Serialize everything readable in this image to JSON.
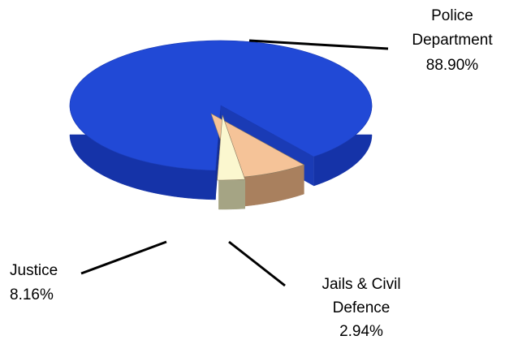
{
  "chart_data": {
    "type": "pie",
    "style": "3d-exploded",
    "title": "",
    "slices": [
      {
        "label_lines": [
          "Police",
          "Department"
        ],
        "value_label": "88.90%",
        "value": 88.9,
        "color": "#2149d6",
        "side_color": "#1533a8"
      },
      {
        "label_lines": [
          "Justice"
        ],
        "value_label": "8.16%",
        "value": 8.16,
        "color": "#f5c398",
        "side_color": "#a9805e"
      },
      {
        "label_lines": [
          "Jails & Civil",
          "Defence"
        ],
        "value_label": "2.94%",
        "value": 2.94,
        "color": "#fbf7cf",
        "side_color": "#a5a484"
      }
    ]
  }
}
